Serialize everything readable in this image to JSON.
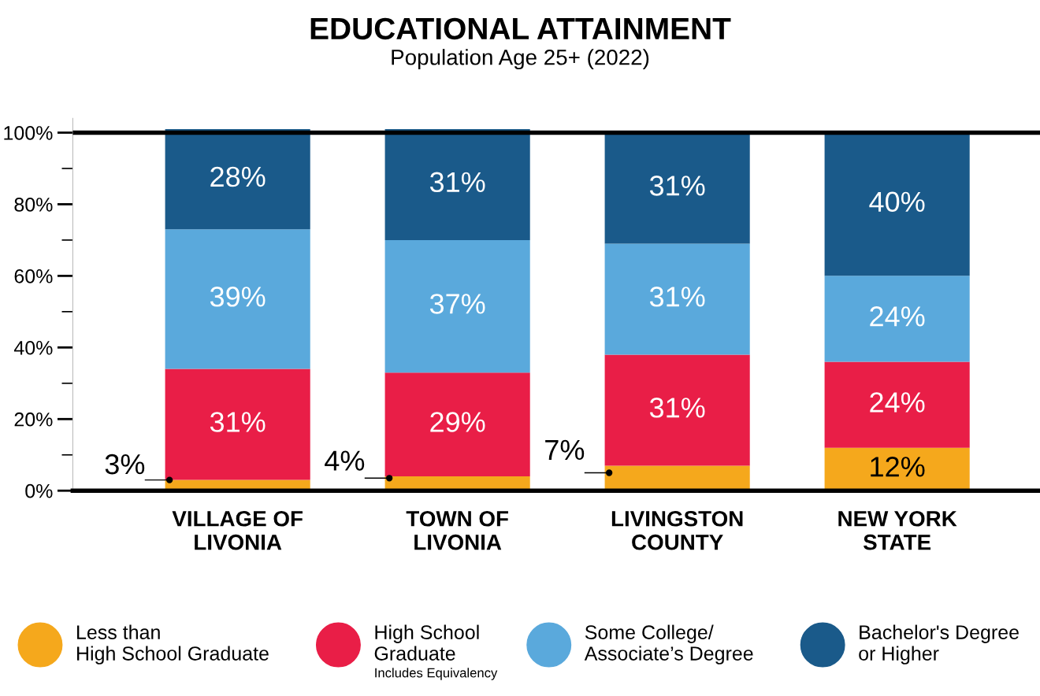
{
  "chart_data": {
    "type": "bar",
    "stacked": true,
    "title": "EDUCATIONAL ATTAINMENT",
    "subtitle": "Population Age 25+ (2022)",
    "categories": [
      "VILLAGE OF\nLIVONIA",
      "TOWN OF\nLIVONIA",
      "LIVINGSTON\nCOUNTY",
      "NEW YORK\nSTATE"
    ],
    "series": [
      {
        "name": "Less than\nHigh School Graduate",
        "color": "#f5a81c",
        "values": [
          3,
          4,
          7,
          12
        ],
        "value_labels": [
          "3%",
          "4%",
          "7%",
          "12%"
        ]
      },
      {
        "name": "High School\nGraduate",
        "color": "#e91e47",
        "values": [
          31,
          29,
          31,
          24
        ],
        "value_labels": [
          "31%",
          "29%",
          "31%",
          "24%"
        ]
      },
      {
        "name": "Some College/\nAssociate’s Degree",
        "color": "#5aa9dc",
        "values": [
          39,
          37,
          31,
          24
        ],
        "value_labels": [
          "39%",
          "37%",
          "31%",
          "24%"
        ]
      },
      {
        "name": "Bachelor's Degree\nor Higher",
        "color": "#1a5a8a",
        "values": [
          28,
          31,
          31,
          40
        ],
        "value_labels": [
          "28%",
          "31%",
          "31%",
          "40%"
        ]
      }
    ],
    "ylim": [
      0,
      104
    ],
    "yticks": [
      {
        "value": 0,
        "label": "0%"
      },
      {
        "value": 10,
        "label": null
      },
      {
        "value": 20,
        "label": "20%"
      },
      {
        "value": 30,
        "label": null
      },
      {
        "value": 40,
        "label": "40%"
      },
      {
        "value": 50,
        "label": null
      },
      {
        "value": 60,
        "label": "60%"
      },
      {
        "value": 70,
        "label": null
      },
      {
        "value": 80,
        "label": "80%"
      },
      {
        "value": 90,
        "label": null
      },
      {
        "value": 100,
        "label": "100%"
      }
    ],
    "ref_lines": [
      {
        "axis": "y",
        "value": 100,
        "color": "#000000"
      }
    ],
    "grid": false,
    "legend": "bottom",
    "annotations": [
      "Includes Equivalency"
    ]
  }
}
